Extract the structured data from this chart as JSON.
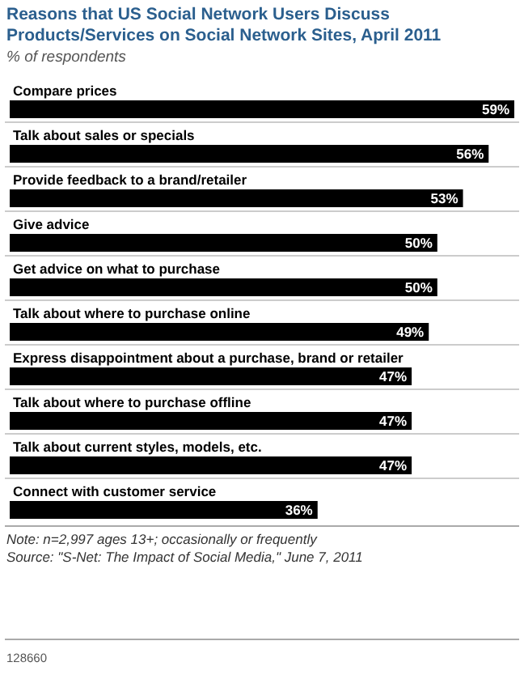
{
  "chart_data": {
    "type": "bar",
    "orientation": "horizontal",
    "title": "Reasons that US Social Network Users Discuss Products/Services on Social Network Sites, April 2011",
    "subtitle": "% of respondents",
    "categories": [
      "Compare prices",
      "Talk about sales or specials",
      "Provide feedback to a brand/retailer",
      "Give advice",
      "Get advice on what to purchase",
      "Talk about where to purchase online",
      "Express disappointment about a purchase, brand or retailer",
      "Talk about where to purchase offline",
      "Talk about current styles, models, etc.",
      "Connect with customer service"
    ],
    "values": [
      59,
      56,
      53,
      50,
      50,
      49,
      47,
      47,
      47,
      36
    ],
    "value_labels": [
      "59%",
      "56%",
      "53%",
      "50%",
      "50%",
      "49%",
      "47%",
      "47%",
      "47%",
      "36%"
    ],
    "color": "#000000",
    "annotations": [
      "Note: n=2,997 ages 13+; occasionally or frequently",
      "Source: \"S-Net: The Impact of Social Media,\" June 7, 2011",
      "128660"
    ]
  }
}
